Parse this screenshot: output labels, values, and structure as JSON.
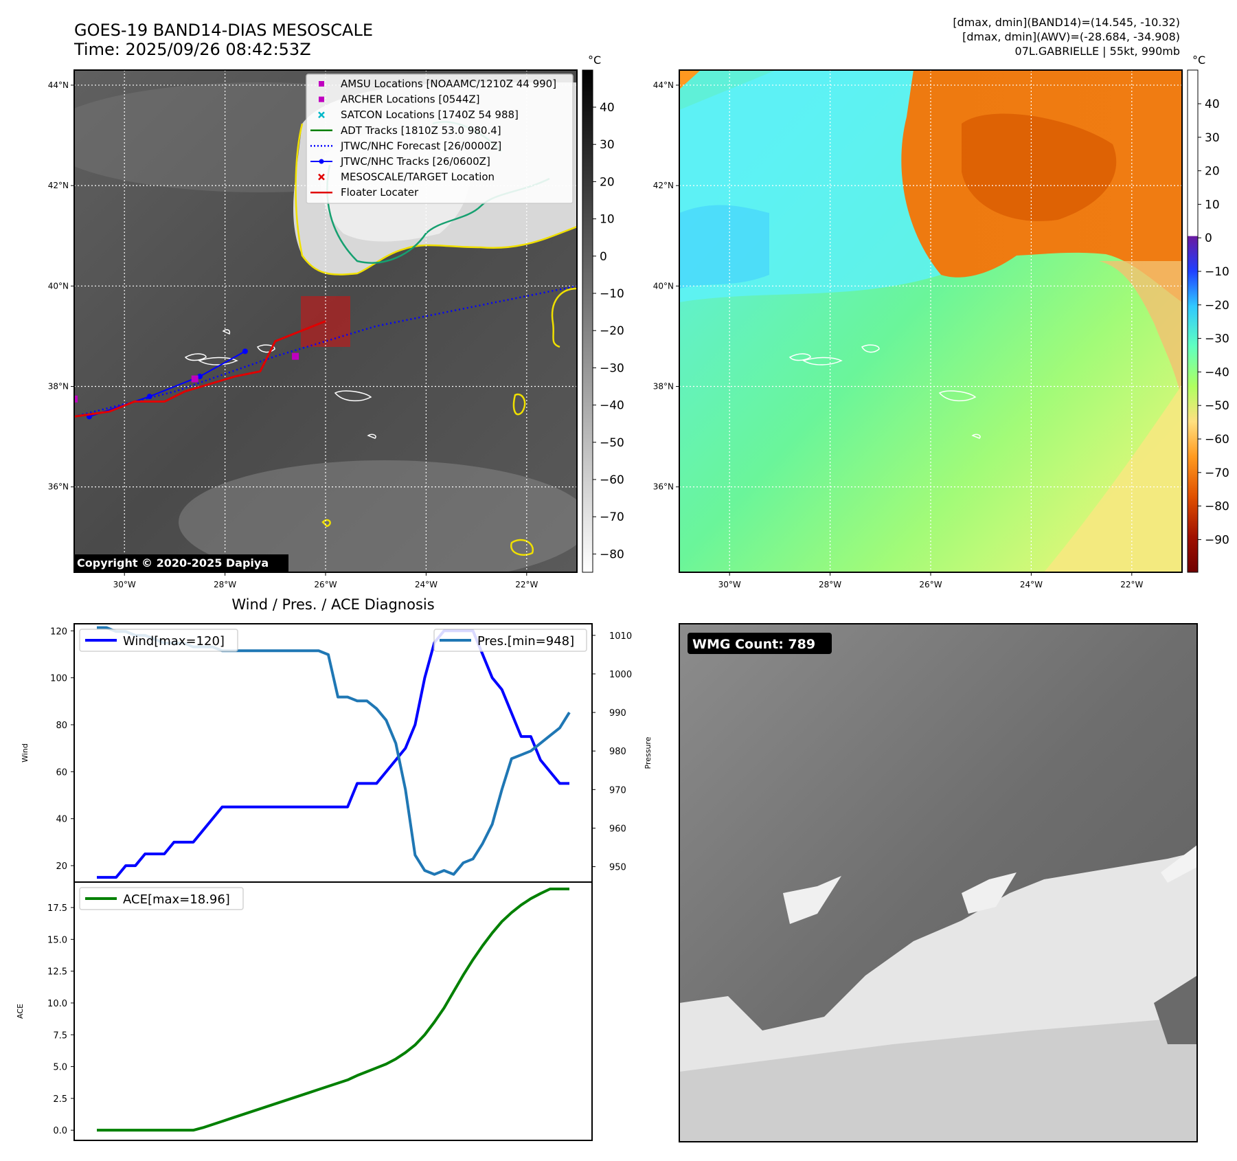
{
  "header": {
    "title_line1": "GOES-19 BAND14-DIAS MESOSCALE",
    "title_line2": "Time: 2025/09/26 08:42:53Z",
    "info_line1": "[dmax, dmin](BAND14)=(14.545, -10.32)",
    "info_line2": "[dmax, dmin](AWV)=(-28.684, -34.908)",
    "info_line3": "07L.GABRIELLE | 55kt, 990mb",
    "copyright": "Copyright © 2020-2025 Dapiya",
    "wmg_count": "WMG Count: 789",
    "diag_title": "Wind / Pres. / ACE Diagnosis"
  },
  "map": {
    "lat_labels": [
      "44°N",
      "42°N",
      "40°N",
      "38°N",
      "36°N"
    ],
    "lat_values": [
      44,
      42,
      40,
      38,
      36
    ],
    "lon_labels": [
      "30°W",
      "28°W",
      "26°W",
      "24°W",
      "22°W"
    ],
    "lon_values": [
      -30,
      -28,
      -26,
      -24,
      -22
    ],
    "lon_range": [
      -31,
      -21
    ],
    "lat_range": [
      34.3,
      44.3
    ]
  },
  "legend": [
    {
      "label": "AMSU Locations [NOAAMC/1210Z 44 990]",
      "marker": "square",
      "color": "#c000c0"
    },
    {
      "label": "ARCHER Locations [0544Z]",
      "marker": "square",
      "color": "#c000c0"
    },
    {
      "label": "SATCON Locations [1740Z 54 988]",
      "marker": "x",
      "color": "#00b8c8"
    },
    {
      "label": "ADT Tracks [1810Z 53.0 980.4]",
      "marker": "line",
      "color": "#008000"
    },
    {
      "label": "JTWC/NHC Forecast [26/0000Z]",
      "marker": "dotted",
      "color": "#0000ff"
    },
    {
      "label": "JTWC/NHC Tracks [26/0600Z]",
      "marker": "line-dot",
      "color": "#0000ff"
    },
    {
      "label": "MESOSCALE/TARGET Location",
      "marker": "x",
      "color": "#e00000"
    },
    {
      "label": "Floater Locater",
      "marker": "line",
      "color": "#e00000"
    }
  ],
  "colorbar_ir": {
    "unit": "°C",
    "ticks": [
      "40",
      "30",
      "20",
      "10",
      "0",
      "−10",
      "−20",
      "−30",
      "−40",
      "−50",
      "−60",
      "−70",
      "−80"
    ]
  },
  "colorbar_wv": {
    "unit": "°C",
    "ticks": [
      "40",
      "30",
      "20",
      "10",
      "0",
      "−10",
      "−20",
      "−30",
      "−40",
      "−50",
      "−60",
      "−70",
      "−80",
      "−90"
    ]
  },
  "chart_data": [
    {
      "type": "line",
      "xlabel": "",
      "ylabel": "Wind",
      "y2label": "Pressure",
      "ylim": [
        13,
        123
      ],
      "y2lim": [
        946,
        1013
      ],
      "yticks": [
        20,
        40,
        60,
        80,
        100,
        120
      ],
      "y2ticks": [
        950,
        960,
        970,
        980,
        990,
        1000,
        1010
      ],
      "series": [
        {
          "name": "Wind[max=120]",
          "axis": "left",
          "color": "#0000ff",
          "values": [
            15,
            15,
            15,
            20,
            20,
            25,
            25,
            25,
            30,
            30,
            30,
            35,
            40,
            45,
            45,
            45,
            45,
            45,
            45,
            45,
            45,
            45,
            45,
            45,
            45,
            45,
            45,
            55,
            55,
            55,
            60,
            65,
            70,
            80,
            100,
            115,
            120,
            120,
            120,
            120,
            110,
            100,
            95,
            85,
            75,
            75,
            65,
            60,
            55,
            55
          ]
        },
        {
          "name": "Pres.[min=948]",
          "axis": "right",
          "color": "#1f77b4",
          "values": [
            1012,
            1012,
            1011,
            1011,
            1010,
            1010,
            1009,
            1008,
            1008,
            1008,
            1007,
            1007,
            1007,
            1006,
            1006,
            1006,
            1006,
            1006,
            1006,
            1006,
            1006,
            1006,
            1006,
            1006,
            1005,
            994,
            994,
            993,
            993,
            991,
            988,
            982,
            970,
            953,
            949,
            948,
            949,
            948,
            951,
            952,
            956,
            961,
            970,
            978,
            979,
            980,
            982,
            984,
            986,
            990
          ]
        }
      ]
    },
    {
      "type": "line",
      "xlabel": "",
      "ylabel": "ACE",
      "ylim": [
        -0.8,
        19.5
      ],
      "yticks": [
        0.0,
        2.5,
        5.0,
        7.5,
        10.0,
        12.5,
        15.0,
        17.5
      ],
      "series": [
        {
          "name": "ACE[max=18.96]",
          "color": "#008000",
          "values": [
            0,
            0,
            0,
            0,
            0,
            0,
            0,
            0,
            0,
            0,
            0,
            0.2,
            0.45,
            0.7,
            0.95,
            1.2,
            1.45,
            1.7,
            1.95,
            2.2,
            2.45,
            2.7,
            2.95,
            3.2,
            3.45,
            3.7,
            3.95,
            4.3,
            4.6,
            4.9,
            5.2,
            5.6,
            6.1,
            6.7,
            7.5,
            8.5,
            9.6,
            10.9,
            12.2,
            13.4,
            14.5,
            15.5,
            16.4,
            17.1,
            17.7,
            18.2,
            18.6,
            18.96,
            18.96,
            18.96
          ]
        }
      ]
    }
  ]
}
